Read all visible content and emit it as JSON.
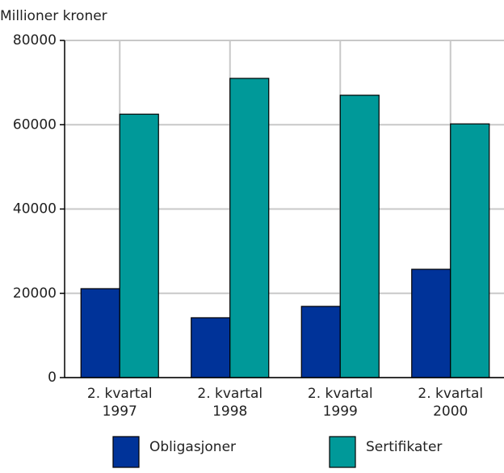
{
  "chart_data": {
    "type": "bar",
    "y_label": "Millioner kroner",
    "categories": [
      "2. kvartal 1997",
      "2. kvartal 1998",
      "2. kvartal 1999",
      "2. kvartal 2000"
    ],
    "series": [
      {
        "name": "Obligasjoner",
        "color": "#003399",
        "values": [
          21100,
          14200,
          16900,
          25700
        ]
      },
      {
        "name": "Sertifikater",
        "color": "#009999",
        "values": [
          62500,
          71000,
          67000,
          60200
        ]
      }
    ],
    "ylim": [
      0,
      80000
    ],
    "yticks": [
      0,
      20000,
      40000,
      60000,
      80000
    ],
    "grid": true
  }
}
